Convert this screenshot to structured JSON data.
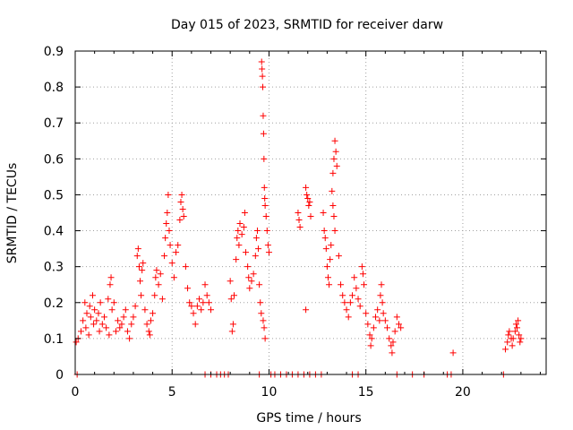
{
  "chart_data": {
    "type": "scatter",
    "title": "Day 015 of 2023, SRMTID for receiver darw",
    "xlabel": "GPS time / hours",
    "ylabel": "SRMTID / TECUs",
    "xlim": [
      0,
      24.3
    ],
    "ylim": [
      0,
      0.9
    ],
    "x_ticks": [
      0,
      5,
      10,
      15,
      20
    ],
    "y_ticks": [
      0,
      0.1,
      0.2,
      0.3,
      0.4,
      0.5,
      0.6,
      0.7,
      0.8,
      0.9
    ],
    "x_tick_labels": [
      "0",
      "5",
      "10",
      "15",
      "20"
    ],
    "y_tick_labels": [
      "0",
      "0.1",
      "0.2",
      "0.3",
      "0.4",
      "0.5",
      "0.6",
      "0.7",
      "0.8",
      "0.9"
    ],
    "grid": true,
    "marker": "+",
    "color": "#ff0000",
    "series": [
      {
        "name": "SRMTID",
        "points": [
          [
            0.05,
            0.09
          ],
          [
            0.15,
            0.1
          ],
          [
            0.3,
            0.12
          ],
          [
            0.4,
            0.15
          ],
          [
            0.5,
            0.2
          ],
          [
            0.55,
            0.13
          ],
          [
            0.6,
            0.17
          ],
          [
            0.7,
            0.11
          ],
          [
            0.75,
            0.19
          ],
          [
            0.8,
            0.16
          ],
          [
            0.9,
            0.22
          ],
          [
            0.95,
            0.14
          ],
          [
            1.0,
            0.18
          ],
          [
            1.1,
            0.15
          ],
          [
            1.2,
            0.17
          ],
          [
            1.25,
            0.12
          ],
          [
            1.3,
            0.2
          ],
          [
            1.4,
            0.14
          ],
          [
            1.5,
            0.16
          ],
          [
            1.6,
            0.13
          ],
          [
            1.7,
            0.21
          ],
          [
            1.75,
            0.11
          ],
          [
            1.8,
            0.25
          ],
          [
            1.85,
            0.27
          ],
          [
            1.9,
            0.18
          ],
          [
            2.0,
            0.2
          ],
          [
            2.1,
            0.12
          ],
          [
            2.2,
            0.15
          ],
          [
            2.3,
            0.13
          ],
          [
            2.4,
            0.14
          ],
          [
            2.5,
            0.16
          ],
          [
            2.6,
            0.18
          ],
          [
            2.7,
            0.12
          ],
          [
            2.8,
            0.1
          ],
          [
            2.9,
            0.14
          ],
          [
            3.0,
            0.16
          ],
          [
            3.1,
            0.19
          ],
          [
            3.2,
            0.33
          ],
          [
            3.25,
            0.35
          ],
          [
            3.3,
            0.3
          ],
          [
            3.35,
            0.26
          ],
          [
            3.4,
            0.22
          ],
          [
            3.45,
            0.29
          ],
          [
            3.5,
            0.31
          ],
          [
            3.6,
            0.18
          ],
          [
            3.7,
            0.14
          ],
          [
            3.8,
            0.12
          ],
          [
            3.85,
            0.11
          ],
          [
            3.9,
            0.15
          ],
          [
            4.0,
            0.17
          ],
          [
            4.1,
            0.22
          ],
          [
            4.15,
            0.27
          ],
          [
            4.2,
            0.29
          ],
          [
            4.3,
            0.25
          ],
          [
            4.4,
            0.28
          ],
          [
            4.5,
            0.21
          ],
          [
            4.6,
            0.33
          ],
          [
            4.65,
            0.38
          ],
          [
            4.7,
            0.42
          ],
          [
            4.75,
            0.45
          ],
          [
            4.8,
            0.5
          ],
          [
            4.85,
            0.4
          ],
          [
            4.9,
            0.36
          ],
          [
            5.0,
            0.31
          ],
          [
            5.1,
            0.27
          ],
          [
            5.2,
            0.34
          ],
          [
            5.3,
            0.36
          ],
          [
            5.4,
            0.43
          ],
          [
            5.45,
            0.48
          ],
          [
            5.5,
            0.5
          ],
          [
            5.55,
            0.46
          ],
          [
            5.6,
            0.44
          ],
          [
            5.7,
            0.3
          ],
          [
            5.8,
            0.24
          ],
          [
            5.9,
            0.2
          ],
          [
            6.0,
            0.19
          ],
          [
            6.1,
            0.17
          ],
          [
            6.2,
            0.14
          ],
          [
            6.3,
            0.19
          ],
          [
            6.4,
            0.21
          ],
          [
            6.5,
            0.18
          ],
          [
            6.6,
            0.2
          ],
          [
            6.7,
            0.25
          ],
          [
            6.8,
            0.22
          ],
          [
            6.9,
            0.2
          ],
          [
            7.0,
            0.18
          ],
          [
            8.0,
            0.26
          ],
          [
            8.05,
            0.21
          ],
          [
            8.1,
            0.12
          ],
          [
            8.15,
            0.14
          ],
          [
            8.2,
            0.22
          ],
          [
            8.3,
            0.32
          ],
          [
            8.35,
            0.38
          ],
          [
            8.4,
            0.4
          ],
          [
            8.45,
            0.36
          ],
          [
            8.5,
            0.42
          ],
          [
            8.6,
            0.39
          ],
          [
            8.7,
            0.41
          ],
          [
            8.75,
            0.45
          ],
          [
            8.8,
            0.34
          ],
          [
            8.9,
            0.3
          ],
          [
            8.95,
            0.27
          ],
          [
            9.0,
            0.24
          ],
          [
            9.1,
            0.26
          ],
          [
            9.2,
            0.28
          ],
          [
            9.3,
            0.33
          ],
          [
            9.35,
            0.38
          ],
          [
            9.4,
            0.4
          ],
          [
            9.45,
            0.35
          ],
          [
            9.5,
            0.25
          ],
          [
            9.55,
            0.2
          ],
          [
            9.6,
            0.17
          ],
          [
            9.62,
            0.87
          ],
          [
            9.64,
            0.85
          ],
          [
            9.66,
            0.83
          ],
          [
            9.68,
            0.8
          ],
          [
            9.7,
            0.72
          ],
          [
            9.72,
            0.67
          ],
          [
            9.74,
            0.6
          ],
          [
            9.76,
            0.52
          ],
          [
            9.78,
            0.49
          ],
          [
            9.8,
            0.47
          ],
          [
            9.85,
            0.44
          ],
          [
            9.9,
            0.4
          ],
          [
            9.95,
            0.36
          ],
          [
            10.0,
            0.34
          ],
          [
            9.75,
            0.13
          ],
          [
            9.8,
            0.1
          ],
          [
            9.7,
            0.15
          ],
          [
            11.5,
            0.45
          ],
          [
            11.55,
            0.43
          ],
          [
            11.6,
            0.41
          ],
          [
            11.9,
            0.52
          ],
          [
            11.95,
            0.5
          ],
          [
            12.0,
            0.49
          ],
          [
            12.05,
            0.47
          ],
          [
            12.1,
            0.48
          ],
          [
            12.15,
            0.44
          ],
          [
            11.9,
            0.18
          ],
          [
            12.8,
            0.45
          ],
          [
            12.85,
            0.4
          ],
          [
            12.9,
            0.38
          ],
          [
            12.95,
            0.35
          ],
          [
            13.0,
            0.3
          ],
          [
            13.05,
            0.27
          ],
          [
            13.1,
            0.25
          ],
          [
            13.15,
            0.32
          ],
          [
            13.2,
            0.36
          ],
          [
            13.25,
            0.51
          ],
          [
            13.3,
            0.56
          ],
          [
            13.35,
            0.6
          ],
          [
            13.4,
            0.65
          ],
          [
            13.45,
            0.62
          ],
          [
            13.5,
            0.58
          ],
          [
            13.3,
            0.47
          ],
          [
            13.35,
            0.44
          ],
          [
            13.4,
            0.4
          ],
          [
            13.6,
            0.33
          ],
          [
            13.7,
            0.25
          ],
          [
            13.8,
            0.22
          ],
          [
            13.9,
            0.2
          ],
          [
            14.0,
            0.18
          ],
          [
            14.1,
            0.16
          ],
          [
            14.2,
            0.2
          ],
          [
            14.3,
            0.22
          ],
          [
            14.4,
            0.27
          ],
          [
            14.5,
            0.24
          ],
          [
            14.6,
            0.21
          ],
          [
            14.7,
            0.19
          ],
          [
            14.8,
            0.3
          ],
          [
            14.85,
            0.28
          ],
          [
            14.9,
            0.25
          ],
          [
            15.0,
            0.17
          ],
          [
            15.1,
            0.14
          ],
          [
            15.2,
            0.11
          ],
          [
            15.25,
            0.08
          ],
          [
            15.3,
            0.1
          ],
          [
            15.4,
            0.13
          ],
          [
            15.5,
            0.16
          ],
          [
            15.6,
            0.18
          ],
          [
            15.7,
            0.15
          ],
          [
            15.75,
            0.22
          ],
          [
            15.8,
            0.25
          ],
          [
            15.85,
            0.2
          ],
          [
            15.9,
            0.17
          ],
          [
            16.0,
            0.15
          ],
          [
            16.1,
            0.13
          ],
          [
            16.2,
            0.1
          ],
          [
            16.3,
            0.08
          ],
          [
            16.35,
            0.06
          ],
          [
            16.4,
            0.09
          ],
          [
            16.5,
            0.12
          ],
          [
            16.6,
            0.16
          ],
          [
            16.7,
            0.14
          ],
          [
            16.8,
            0.13
          ],
          [
            19.5,
            0.06
          ],
          [
            22.2,
            0.07
          ],
          [
            22.3,
            0.09
          ],
          [
            22.35,
            0.11
          ],
          [
            22.4,
            0.12
          ],
          [
            22.5,
            0.1
          ],
          [
            22.55,
            0.08
          ],
          [
            22.6,
            0.1
          ],
          [
            22.7,
            0.12
          ],
          [
            22.75,
            0.14
          ],
          [
            22.8,
            0.13
          ],
          [
            22.85,
            0.15
          ],
          [
            22.9,
            0.11
          ],
          [
            22.95,
            0.09
          ],
          [
            23.0,
            0.1
          ],
          [
            0.1,
            0.0
          ],
          [
            6.7,
            0.0
          ],
          [
            7.0,
            0.0
          ],
          [
            7.3,
            0.0
          ],
          [
            7.5,
            0.0
          ],
          [
            7.7,
            0.0
          ],
          [
            7.9,
            0.0
          ],
          [
            9.5,
            0.0
          ],
          [
            10.1,
            0.0
          ],
          [
            10.3,
            0.0
          ],
          [
            10.6,
            0.0
          ],
          [
            10.9,
            0.0
          ],
          [
            11.2,
            0.0
          ],
          [
            11.5,
            0.0
          ],
          [
            11.8,
            0.0
          ],
          [
            12.1,
            0.0
          ],
          [
            12.4,
            0.0
          ],
          [
            12.7,
            0.0
          ],
          [
            14.3,
            0.0
          ],
          [
            14.6,
            0.0
          ],
          [
            16.6,
            0.0
          ],
          [
            17.4,
            0.0
          ],
          [
            18.0,
            0.0
          ],
          [
            19.2,
            0.0
          ],
          [
            19.4,
            0.0
          ],
          [
            22.1,
            0.0
          ]
        ]
      }
    ]
  }
}
